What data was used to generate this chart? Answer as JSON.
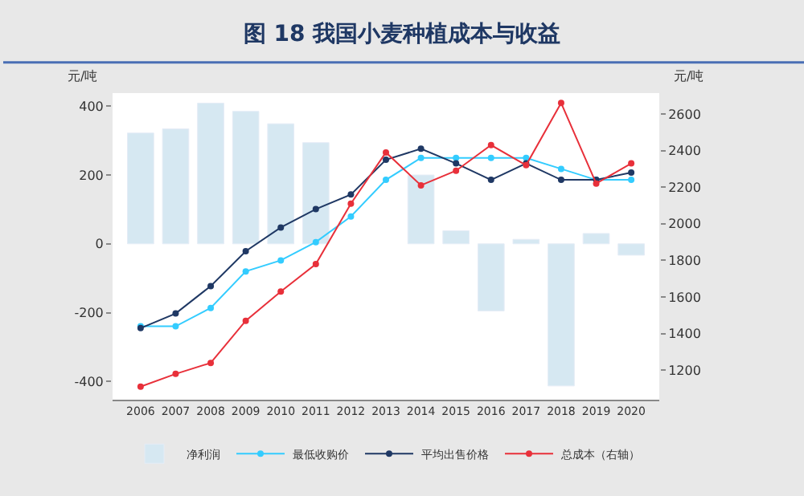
{
  "chart_data": {
    "type": "bar",
    "title": "图 18 我国小麦种植成本与收益",
    "ylabel": "元/吨",
    "y2label": "元/吨",
    "categories": [
      "2006",
      "2007",
      "2008",
      "2009",
      "2010",
      "2011",
      "2012",
      "2013",
      "2014",
      "2015",
      "2016",
      "2017",
      "2018",
      "2019",
      "2020"
    ],
    "series": [
      {
        "name": "净利润",
        "color": "#d6e8f2",
        "values": [
          322,
          334,
          409,
          385,
          349,
          294,
          null,
          null,
          200,
          38,
          -195,
          13,
          -413,
          30,
          -33
        ]
      },
      {
        "name": "最低收购价",
        "type": "line",
        "axis": "y2",
        "color": "#33ccff",
        "values": [
          1440,
          1440,
          1540,
          1740,
          1800,
          1900,
          2040,
          2240,
          2360,
          2360,
          2360,
          2360,
          2300,
          2240,
          2240
        ]
      },
      {
        "name": "平均出售价格",
        "type": "line",
        "axis": "y2",
        "color": "#1f3864",
        "values": [
          1430,
          1510,
          1660,
          1850,
          1980,
          2080,
          2160,
          2350,
          2410,
          2330,
          2240,
          2330,
          2240,
          2240,
          2280
        ]
      },
      {
        "name": "总成本（右轴）",
        "type": "line",
        "axis": "y2",
        "color": "#e8303a",
        "values": [
          1110,
          1180,
          1240,
          1470,
          1630,
          1780,
          2110,
          2390,
          2210,
          2290,
          2430,
          2320,
          2660,
          2220,
          2330
        ]
      }
    ],
    "ylim": [
      -453,
      438
    ],
    "yticks": [
      -400,
      -200,
      0,
      200,
      400
    ],
    "y2lim": [
      1039,
      2714
    ],
    "y2ticks": [
      1200,
      1400,
      1600,
      1800,
      2000,
      2200,
      2400,
      2600
    ],
    "marker": "circle",
    "legend": "bottom"
  }
}
